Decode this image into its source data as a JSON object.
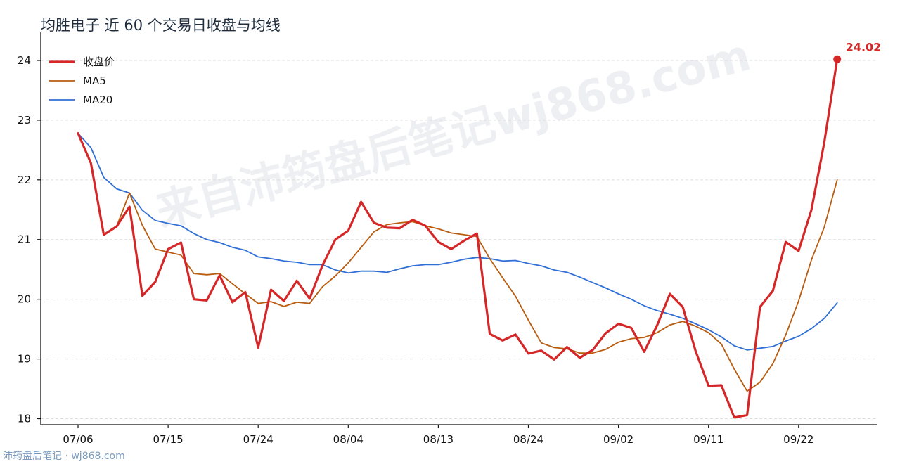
{
  "title": "均胜电子 近 60 个交易日收盘与均线",
  "watermark": "来自沛筠盘后笔记wj868.com",
  "footer": "沛筠盘后笔记 · wj868.com",
  "colors": {
    "close": "#d62728",
    "ma5": "#b85c0f",
    "ma20": "#2f6fd6",
    "grid": "#dddddd"
  },
  "chart_data": {
    "type": "line",
    "title": "均胜电子 近 60 个交易日收盘与均线",
    "xlabel": "",
    "ylabel": "",
    "ylim": [
      17.9,
      24.4
    ],
    "yticks": [
      18,
      19,
      20,
      21,
      22,
      23,
      24
    ],
    "xticks": [
      {
        "index": 0,
        "label": "07/06"
      },
      {
        "index": 7,
        "label": "07/15"
      },
      {
        "index": 14,
        "label": "07/24"
      },
      {
        "index": 21,
        "label": "08/04"
      },
      {
        "index": 28,
        "label": "08/13"
      },
      {
        "index": 35,
        "label": "08/24"
      },
      {
        "index": 42,
        "label": "09/02"
      },
      {
        "index": 49,
        "label": "09/11"
      },
      {
        "index": 56,
        "label": "09/22"
      }
    ],
    "grid": "horizontal dashed",
    "legend_position": "top-left",
    "series": [
      {
        "name": "收盘价",
        "values": [
          22.78,
          22.28,
          21.08,
          21.22,
          21.55,
          20.06,
          20.29,
          20.84,
          20.95,
          20.0,
          19.98,
          20.4,
          19.95,
          20.12,
          19.19,
          20.16,
          19.97,
          20.31,
          20.01,
          20.57,
          21.0,
          21.15,
          21.63,
          21.28,
          21.2,
          21.19,
          21.33,
          21.23,
          20.96,
          20.84,
          20.98,
          21.1,
          19.42,
          19.31,
          19.41,
          19.09,
          19.14,
          18.99,
          19.2,
          19.02,
          19.15,
          19.43,
          19.59,
          19.52,
          19.12,
          19.56,
          20.09,
          19.87,
          19.13,
          18.55,
          18.56,
          18.02,
          18.06,
          19.87,
          20.14,
          20.96,
          20.81,
          21.5,
          22.63,
          24.02
        ]
      },
      {
        "name": "MA5",
        "values": [
          22.78,
          22.28,
          21.08,
          21.22,
          21.78,
          21.24,
          20.84,
          20.79,
          20.74,
          20.43,
          20.41,
          20.43,
          20.26,
          20.09,
          19.93,
          19.96,
          19.88,
          19.95,
          19.93,
          20.21,
          20.39,
          20.61,
          20.87,
          21.13,
          21.25,
          21.28,
          21.3,
          21.23,
          21.18,
          21.11,
          21.08,
          21.05,
          20.68,
          20.36,
          20.05,
          19.65,
          19.27,
          19.19,
          19.17,
          19.1,
          19.1,
          19.16,
          19.28,
          19.34,
          19.36,
          19.44,
          19.57,
          19.63,
          19.55,
          19.44,
          19.25,
          18.83,
          18.46,
          18.61,
          18.92,
          19.4,
          19.97,
          20.66,
          21.21,
          22.0
        ]
      },
      {
        "name": "MA20",
        "values": [
          22.78,
          22.54,
          22.04,
          21.85,
          21.78,
          21.49,
          21.32,
          21.27,
          21.23,
          21.1,
          21.0,
          20.95,
          20.87,
          20.82,
          20.71,
          20.68,
          20.64,
          20.62,
          20.58,
          20.58,
          20.49,
          20.44,
          20.47,
          20.47,
          20.45,
          20.51,
          20.56,
          20.58,
          20.58,
          20.62,
          20.67,
          20.7,
          20.68,
          20.64,
          20.65,
          20.6,
          20.56,
          20.49,
          20.45,
          20.37,
          20.28,
          20.19,
          20.09,
          20.0,
          19.89,
          19.81,
          19.75,
          19.68,
          19.59,
          19.49,
          19.37,
          19.22,
          19.15,
          19.18,
          19.21,
          19.3,
          19.38,
          19.51,
          19.68,
          19.94
        ]
      }
    ],
    "annotations": [
      {
        "series": "收盘价",
        "index": 59,
        "label": "24.02"
      }
    ]
  }
}
